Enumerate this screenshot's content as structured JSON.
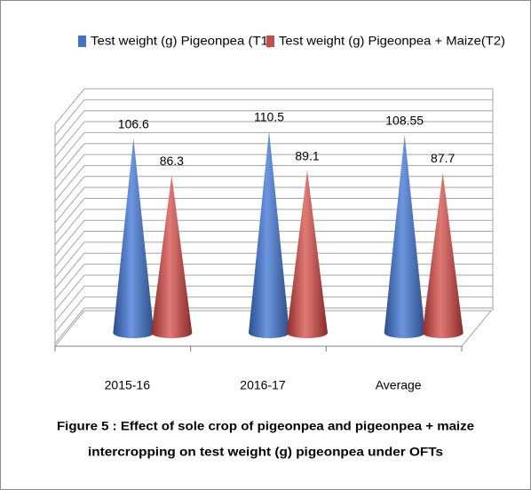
{
  "chart_data": {
    "type": "cone",
    "categories": [
      "2015-16",
      "2016-17",
      "Average"
    ],
    "series": [
      {
        "name": "Test weight (g) Pigeonpea (T1)",
        "color": "#4472c4",
        "values": [
          106.6,
          110.5,
          108.55
        ]
      },
      {
        "name": "Test weight (g) Pigeonpea + Maize(T2)",
        "color": "#c0504d",
        "values": [
          86.3,
          89.1,
          87.7
        ]
      }
    ],
    "ylim": [
      0,
      120
    ],
    "yticks": [
      0,
      6,
      12,
      18,
      24,
      30,
      36,
      42,
      48,
      54,
      60,
      66,
      72,
      78,
      84,
      90,
      96,
      102,
      108,
      114,
      120
    ],
    "grid": true,
    "legend": "top",
    "caption": [
      "Figure 5 :  Effect of sole crop of pigeonpea and pigeonpea + maize",
      "intercropping on test weight (g) pigeonpea under OFTs"
    ]
  }
}
